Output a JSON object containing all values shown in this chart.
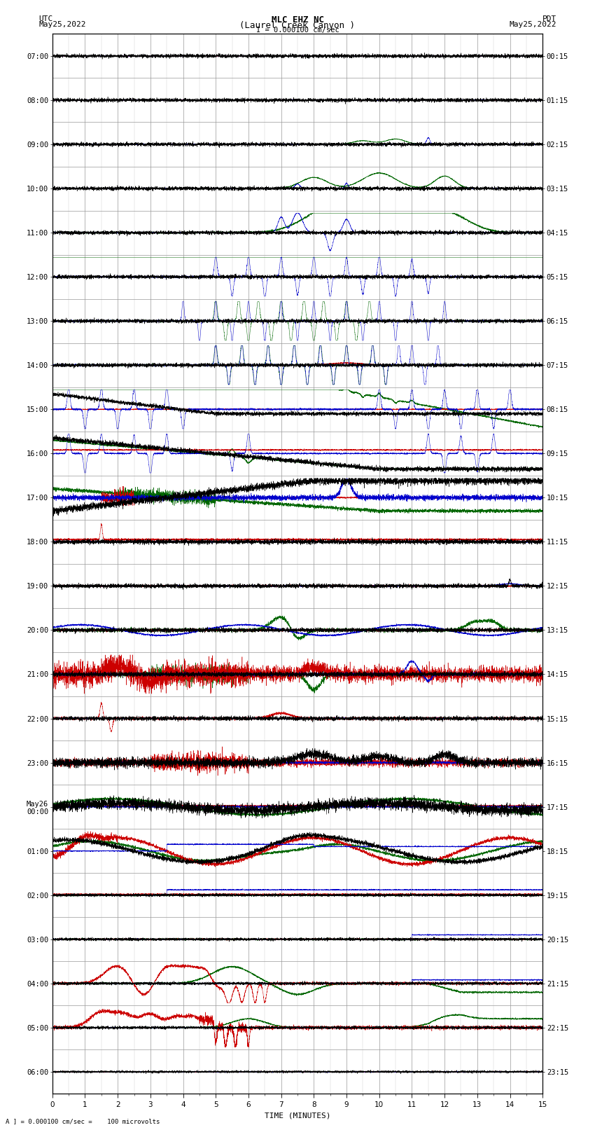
{
  "title_line1": "MLC EHZ NC",
  "title_line2": "(Laurel Creek Canyon )",
  "title_line3": "I = 0.000100 cm/sec",
  "label_left_top": "UTC",
  "label_left_date": "May25,2022",
  "label_right_top": "PDT",
  "label_right_date": "May25,2022",
  "xlabel": "TIME (MINUTES)",
  "footer": "A ] = 0.000100 cm/sec =    100 microvolts",
  "utc_labels": [
    "07:00",
    "08:00",
    "09:00",
    "10:00",
    "11:00",
    "12:00",
    "13:00",
    "14:00",
    "15:00",
    "16:00",
    "17:00",
    "18:00",
    "19:00",
    "20:00",
    "21:00",
    "22:00",
    "23:00",
    "May26\n00:00",
    "01:00",
    "02:00",
    "03:00",
    "04:00",
    "05:00",
    "06:00"
  ],
  "pdt_labels": [
    "00:15",
    "01:15",
    "02:15",
    "03:15",
    "04:15",
    "05:15",
    "06:15",
    "07:15",
    "08:15",
    "09:15",
    "10:15",
    "11:15",
    "12:15",
    "13:15",
    "14:15",
    "15:15",
    "16:15",
    "17:15",
    "18:15",
    "19:15",
    "20:15",
    "21:15",
    "22:15",
    "23:15"
  ],
  "n_rows": 24,
  "x_min": 0,
  "x_max": 15,
  "background_color": "#ffffff",
  "grid_major_color": "#999999",
  "grid_minor_color": "#cccccc",
  "color_black": "#000000",
  "color_red": "#cc0000",
  "color_blue": "#0000cc",
  "color_green": "#006600",
  "title_fontsize": 9,
  "label_fontsize": 8,
  "tick_fontsize": 7.5
}
